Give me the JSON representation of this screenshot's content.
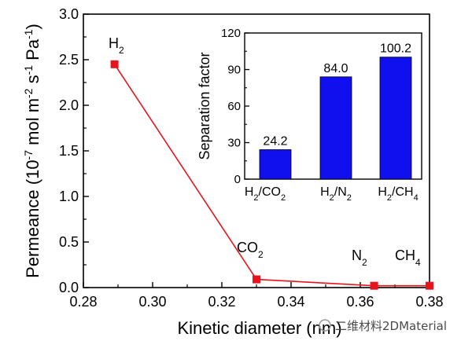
{
  "chart_data": [
    {
      "type": "line",
      "xlabel": "Kinetic diameter (nm)",
      "ylabel": "Permeance (10^-7 mol m^-2 s^-1 Pa^-1)",
      "xlim": [
        0.28,
        0.38
      ],
      "ylim": [
        0.0,
        3.0
      ],
      "x_ticks": [
        "0.28",
        "0.30",
        "0.32",
        "0.34",
        "0.36",
        "0.38"
      ],
      "y_ticks": [
        "0.0",
        "0.5",
        "1.0",
        "1.5",
        "2.0",
        "2.5",
        "3.0"
      ],
      "series": [
        {
          "color": "#e8141b",
          "marker": "square",
          "points": [
            {
              "x": 0.289,
              "y": 2.45,
              "label": "H2"
            },
            {
              "x": 0.33,
              "y": 0.09,
              "label": "CO2"
            },
            {
              "x": 0.364,
              "y": 0.02,
              "label": "N2"
            },
            {
              "x": 0.38,
              "y": 0.02,
              "label": "CH4"
            }
          ]
        }
      ]
    },
    {
      "type": "bar",
      "ylabel": "Separation factor",
      "ylim": [
        0,
        120
      ],
      "y_ticks": [
        "0",
        "30",
        "60",
        "90",
        "120"
      ],
      "categories": [
        "H2/CO2",
        "H2/N2",
        "H2/CH4"
      ],
      "values": [
        24.2,
        84.0,
        100.2
      ],
      "value_labels": [
        "24.2",
        "84.0",
        "100.2"
      ],
      "bar_color": "#1010ee"
    }
  ],
  "watermark": {
    "text": "二维材料2DMaterial"
  }
}
